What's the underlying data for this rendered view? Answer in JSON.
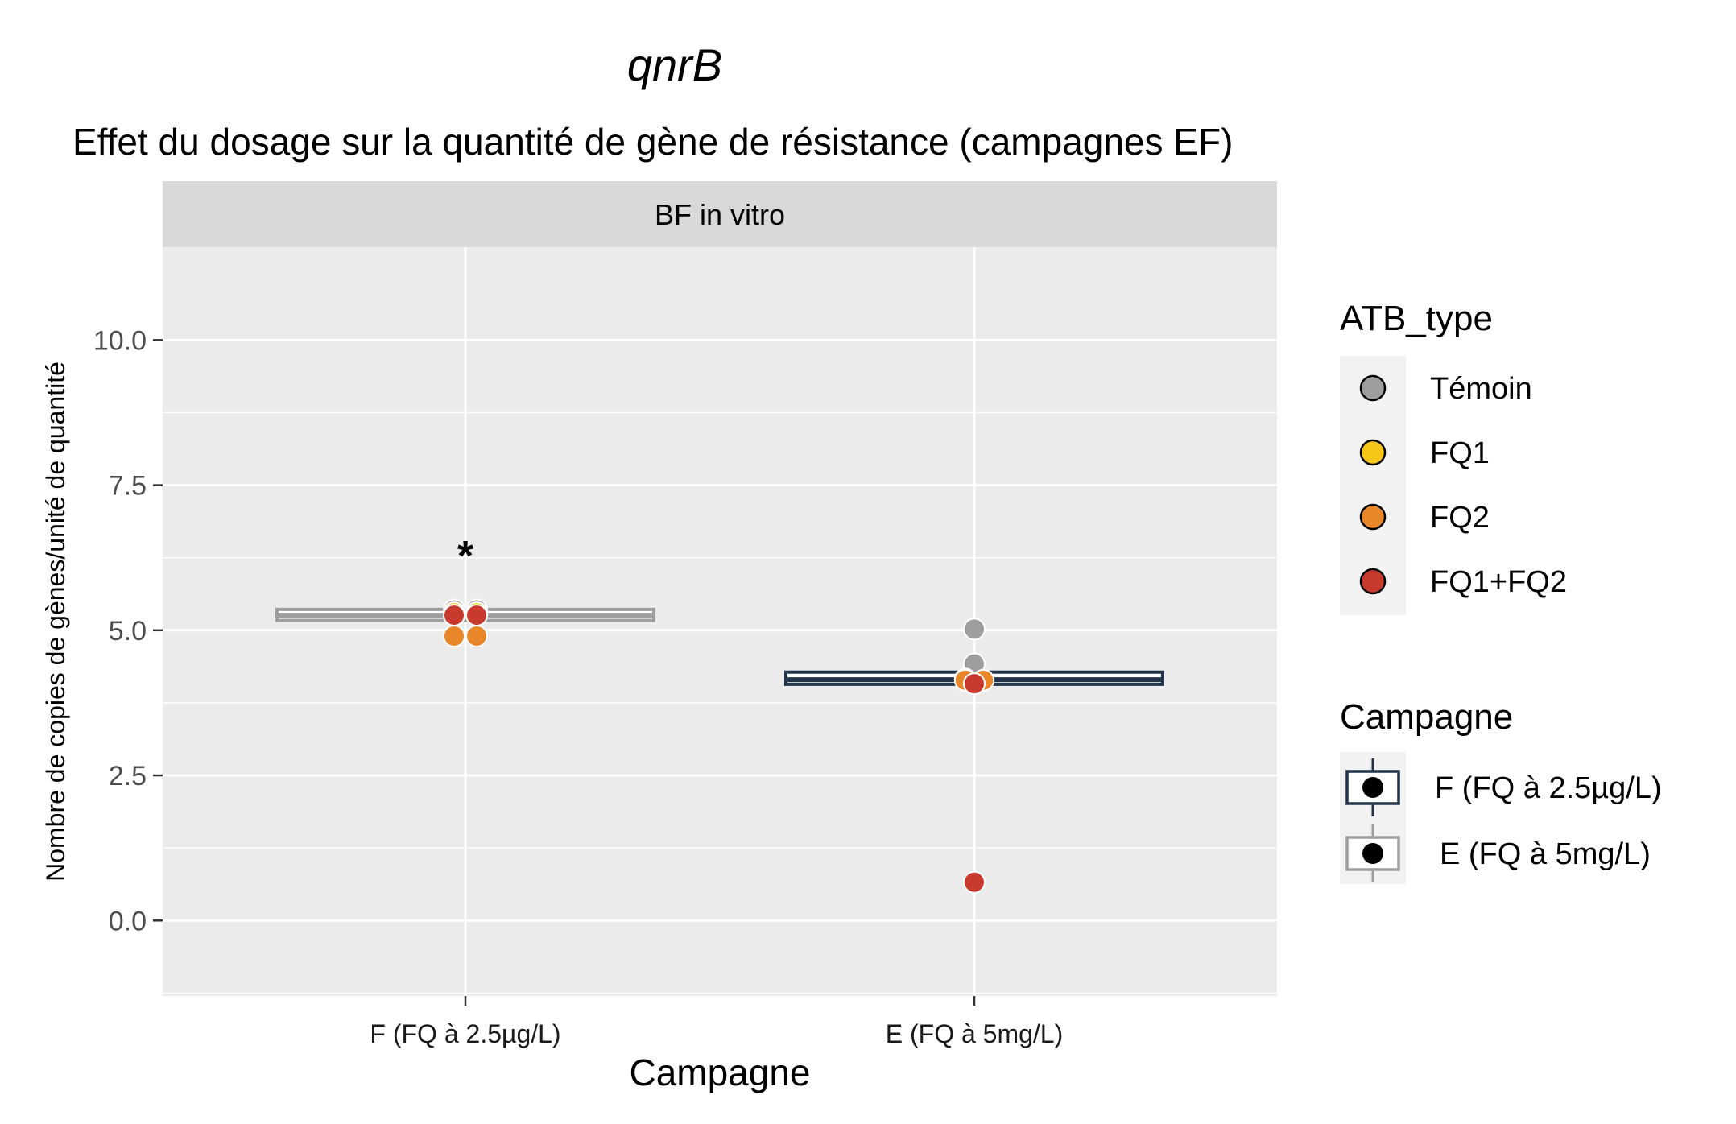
{
  "chart_data": {
    "type": "box",
    "title": "qnrB",
    "subtitle": "Effet du dosage sur la quantité de gène de résistance (campagnes EF)",
    "facet": "BF in vitro",
    "xlabel": "Campagne",
    "ylabel": "Nombre de copies de gènes/unité de quantité",
    "ylim": [
      -1.3,
      11.6
    ],
    "yticks": [
      0.0,
      2.5,
      5.0,
      7.5,
      10.0
    ],
    "ytick_labels": [
      "0.0",
      "2.5",
      "5.0",
      "7.5",
      "10.0"
    ],
    "categories": [
      "F (FQ à 2.5µg/L)",
      "E (FQ à 5mg/L)"
    ],
    "grid": true,
    "legend_position": "right",
    "boxes": [
      {
        "category": "F (FQ à 2.5µg/L)",
        "campagne": "E (FQ à 5mg/L)",
        "q1": 5.17,
        "median": 5.26,
        "q3": 5.36
      },
      {
        "category": "E (FQ à 5mg/L)",
        "campagne": "F (FQ à 2.5µg/L)",
        "q1": 4.07,
        "median": 4.15,
        "q3": 4.28
      }
    ],
    "points": [
      {
        "category": "F (FQ à 2.5µg/L)",
        "type": "Témoin",
        "y": 5.35,
        "dodge": -0.5
      },
      {
        "category": "F (FQ à 2.5µg/L)",
        "type": "Témoin",
        "y": 5.35,
        "dodge": 0.5
      },
      {
        "category": "F (FQ à 2.5µg/L)",
        "type": "FQ1",
        "y": 5.3,
        "dodge": -0.5
      },
      {
        "category": "F (FQ à 2.5µg/L)",
        "type": "FQ1",
        "y": 5.3,
        "dodge": 0.5
      },
      {
        "category": "F (FQ à 2.5µg/L)",
        "type": "FQ2",
        "y": 4.9,
        "dodge": -0.5
      },
      {
        "category": "F (FQ à 2.5µg/L)",
        "type": "FQ2",
        "y": 4.9,
        "dodge": 0.5
      },
      {
        "category": "F (FQ à 2.5µg/L)",
        "type": "FQ1+FQ2",
        "y": 5.26,
        "dodge": -0.5
      },
      {
        "category": "F (FQ à 2.5µg/L)",
        "type": "FQ1+FQ2",
        "y": 5.26,
        "dodge": 0.5
      },
      {
        "category": "E (FQ à 5mg/L)",
        "type": "Témoin",
        "y": 5.02,
        "dodge": 0
      },
      {
        "category": "E (FQ à 5mg/L)",
        "type": "Témoin",
        "y": 4.42,
        "dodge": 0
      },
      {
        "category": "E (FQ à 5mg/L)",
        "type": "FQ1",
        "y": 4.16,
        "dodge": -0.4
      },
      {
        "category": "E (FQ à 5mg/L)",
        "type": "FQ2",
        "y": 4.14,
        "dodge": -0.4
      },
      {
        "category": "E (FQ à 5mg/L)",
        "type": "FQ2",
        "y": 4.14,
        "dodge": 0.4
      },
      {
        "category": "E (FQ à 5mg/L)",
        "type": "FQ1+FQ2",
        "y": 4.08,
        "dodge": 0
      },
      {
        "category": "E (FQ à 5mg/L)",
        "type": "FQ1+FQ2",
        "y": 0.66,
        "dodge": 0
      }
    ],
    "annotations": [
      {
        "category": "F (FQ à 2.5µg/L)",
        "y": 6.4,
        "text": "*"
      }
    ],
    "legends": [
      {
        "title": "ATB_type",
        "entries": [
          {
            "label": "Témoin",
            "color": "#9e9e9e"
          },
          {
            "label": "FQ1",
            "color": "#f5c518"
          },
          {
            "label": "FQ2",
            "color": "#e8862a"
          },
          {
            "label": "FQ1+FQ2",
            "color": "#c93a2e"
          }
        ]
      },
      {
        "title": "Campagne",
        "entries": [
          {
            "label": "F (FQ à 2.5µg/L)",
            "color": "#22344a"
          },
          {
            "label": "E (FQ à 5mg/L)",
            "color": "#9e9e9e"
          }
        ]
      }
    ],
    "colors": {
      "panel_background": "#ebebeb",
      "strip_background": "#d9d9d9",
      "grid": "#ffffff",
      "point_outline": "#ffffff"
    }
  }
}
